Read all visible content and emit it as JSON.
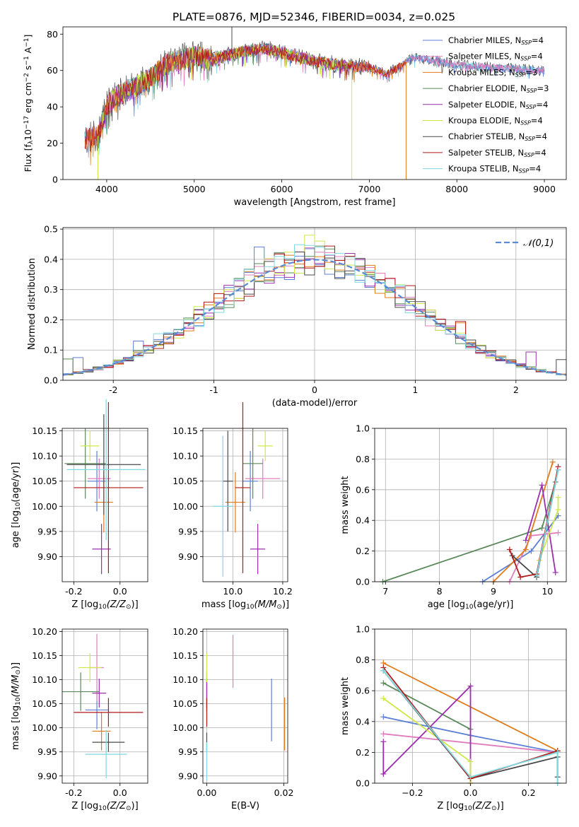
{
  "figure_title": "PLATE=0876, MJD=52346, FIBERID=0034, z=0.025",
  "colors": {
    "Chabrier MILES": "#5b7fd6",
    "Salpeter MILES": "#e07cbf",
    "Kroupa MILES": "#e07b1a",
    "Chabrier ELODIE": "#5a8a5a",
    "Salpeter ELODIE": "#9b2fae",
    "Kroupa ELODIE": "#cfe84a",
    "Chabrier STELIB": "#4a4a4a",
    "Salpeter STELIB": "#b21a1a",
    "Kroupa STELIB": "#7fd9e0"
  },
  "chart_data": [
    {
      "id": "spectrum",
      "type": "line",
      "title": "",
      "xlabel": "wavelength [Angstrom, rest frame]",
      "ylabel_parts": [
        "Flux [f",
        "λ",
        "10",
        "−17",
        " erg cm",
        "−2",
        " s",
        "−1",
        " A",
        "−1",
        "]"
      ],
      "xlim": [
        3500,
        9250
      ],
      "ylim": [
        0,
        84
      ],
      "xticks": [
        4000,
        5000,
        6000,
        7000,
        8000,
        9000
      ],
      "yticks": [
        0,
        20,
        40,
        60,
        80
      ],
      "grid": false,
      "legend_placement": "top-right",
      "legend": [
        {
          "model": "Chabrier MILES",
          "n": "4"
        },
        {
          "model": "Salpeter MILES",
          "n": "4"
        },
        {
          "model": "Kroupa MILES",
          "n": "3"
        },
        {
          "model": "Chabrier ELODIE",
          "n": "3"
        },
        {
          "model": "Salpeter ELODIE",
          "n": "4"
        },
        {
          "model": "Kroupa ELODIE",
          "n": "4"
        },
        {
          "model": "Chabrier STELIB",
          "n": "4"
        },
        {
          "model": "Salpeter STELIB",
          "n": "4"
        },
        {
          "model": "Kroupa STELIB",
          "n": "4"
        }
      ],
      "legend_sub": "SSP",
      "legend_eq": "N",
      "continuum": {
        "x": [
          3750,
          3900,
          4000,
          4100,
          4300,
          4500,
          4700,
          5000,
          5200,
          5500,
          5800,
          6000,
          6300,
          6500,
          6800,
          7000,
          7200,
          7500,
          7800,
          8000,
          8300,
          8600,
          9000
        ],
        "y": [
          22,
          24,
          40,
          46,
          50,
          56,
          64,
          68,
          66,
          70,
          72,
          70,
          66,
          64,
          62,
          62,
          58,
          67,
          65,
          63,
          62,
          61,
          60
        ]
      },
      "spikes": [
        {
          "x": 3900,
          "y": 0,
          "series": "Kroupa ELODIE"
        },
        {
          "x": 6800,
          "y": 0,
          "series": "Kroupa ELODIE"
        },
        {
          "x": 7420,
          "y": 0,
          "series": "Kroupa MILES"
        },
        {
          "x": 5430,
          "y": 84,
          "series": "Chabrier STELIB"
        }
      ]
    },
    {
      "id": "residual_histogram",
      "type": "bar",
      "xlabel": "(data-model)/error",
      "ylabel": "Normed distribution",
      "xlim": [
        -2.5,
        2.5
      ],
      "ylim": [
        0,
        0.505
      ],
      "xticks": [
        -2,
        -1,
        0,
        1,
        2
      ],
      "yticks": [
        0.0,
        0.1,
        0.2,
        0.3,
        0.4,
        0.5
      ],
      "grid": true,
      "bin_width": 0.1,
      "legend_label": "𝒩(0,1)",
      "legend_placement": "top-right",
      "gaussian": {
        "mean": 0,
        "sigma": 1
      }
    },
    {
      "id": "age_vs_Z",
      "type": "scatter",
      "xlabel_parts": [
        "Z [log",
        "10",
        "(Z/Z",
        "⊙",
        ")]"
      ],
      "ylabel_parts": [
        "age  [log",
        "10",
        "(age/yr)]"
      ],
      "xlim": [
        -0.25,
        0.12
      ],
      "ylim": [
        9.85,
        10.155
      ],
      "xticks": [
        -0.2,
        0.0
      ],
      "yticks": [
        9.9,
        9.95,
        10.0,
        10.05,
        10.1,
        10.15
      ],
      "grid": true,
      "points": [
        {
          "series": "Chabrier MILES",
          "x": -0.1,
          "y": 10.05,
          "xerr": 0.04,
          "yerr": 0.06
        },
        {
          "series": "Salpeter MILES",
          "x": -0.09,
          "y": 10.055,
          "xerr": 0.05,
          "yerr": 0.04
        },
        {
          "series": "Kroupa MILES",
          "x": -0.07,
          "y": 10.008,
          "xerr": 0.04,
          "yerr": 0.06
        },
        {
          "series": "Chabrier ELODIE",
          "x": -0.15,
          "y": 10.085,
          "xerr": 0.09,
          "yerr": 0.07
        },
        {
          "series": "Salpeter ELODIE",
          "x": -0.08,
          "y": 9.915,
          "xerr": 0.04,
          "yerr": 0.05
        },
        {
          "series": "Kroupa ELODIE",
          "x": -0.13,
          "y": 10.12,
          "xerr": 0.04,
          "yerr": 0.03
        },
        {
          "series": "Chabrier STELIB",
          "x": -0.07,
          "y": 10.083,
          "xerr": 0.16,
          "yerr": 0.1
        },
        {
          "series": "Salpeter STELIB",
          "x": -0.05,
          "y": 10.037,
          "xerr": 0.15,
          "yerr": 0.17
        },
        {
          "series": "Kroupa STELIB",
          "x": -0.06,
          "y": 10.073,
          "xerr": 0.17,
          "yerr": 0.14
        }
      ]
    },
    {
      "id": "age_vs_mass",
      "type": "scatter",
      "xlabel_parts": [
        "mass [log",
        "10",
        "(M/M",
        "⊙",
        ")]"
      ],
      "xlim": [
        9.88,
        10.22
      ],
      "ylim": [
        9.85,
        10.155
      ],
      "xticks": [
        10.0,
        10.2
      ],
      "yticks": [
        9.9,
        9.95,
        10.0,
        10.05,
        10.1,
        10.15
      ],
      "grid": true,
      "points": [
        {
          "series": "Chabrier MILES",
          "x": 10.07,
          "y": 10.05,
          "xerr": 0.03,
          "yerr": 0.06
        },
        {
          "series": "Salpeter MILES",
          "x": 10.12,
          "y": 10.055,
          "xerr": 0.07,
          "yerr": 0.04
        },
        {
          "series": "Kroupa MILES",
          "x": 10.01,
          "y": 10.008,
          "xerr": 0.04,
          "yerr": 0.06
        },
        {
          "series": "Chabrier ELODIE",
          "x": 10.08,
          "y": 10.085,
          "xerr": 0.04,
          "yerr": 0.07
        },
        {
          "series": "Salpeter ELODIE",
          "x": 10.1,
          "y": 9.915,
          "xerr": 0.03,
          "yerr": 0.05
        },
        {
          "series": "Kroupa ELODIE",
          "x": 10.13,
          "y": 10.12,
          "xerr": 0.03,
          "yerr": 0.03
        },
        {
          "series": "Chabrier STELIB",
          "x": 9.98,
          "y": 10.05,
          "xerr": 0.02,
          "yerr": 0.1
        },
        {
          "series": "Salpeter STELIB",
          "x": 10.04,
          "y": 10.037,
          "xerr": 0.03,
          "yerr": 0.17
        },
        {
          "series": "Kroupa STELIB",
          "x": 9.96,
          "y": 10.0,
          "xerr": 0.04,
          "yerr": 0.14
        }
      ]
    },
    {
      "id": "weight_vs_age",
      "type": "line",
      "xlabel_parts": [
        "age  [log",
        "10",
        "(age/yr)]"
      ],
      "ylabel": "mass weight",
      "xlim": [
        6.8,
        10.35
      ],
      "ylim": [
        0,
        1.0
      ],
      "xticks": [
        7,
        8,
        9,
        10
      ],
      "yticks": [
        0.0,
        0.2,
        0.4,
        0.6,
        0.8,
        1.0
      ],
      "grid": true,
      "series": [
        {
          "name": "Chabrier MILES",
          "x": [
            8.8,
            9.7,
            10.2
          ],
          "y": [
            0.0,
            0.2,
            0.43
          ]
        },
        {
          "name": "Salpeter MILES",
          "x": [
            9.3,
            9.7,
            10.2
          ],
          "y": [
            0.0,
            0.3,
            0.32
          ]
        },
        {
          "name": "Kroupa MILES",
          "x": [
            9.0,
            9.6,
            10.1
          ],
          "y": [
            0.0,
            0.21,
            0.78
          ]
        },
        {
          "name": "Chabrier ELODIE",
          "x": [
            6.95,
            9.9,
            10.15
          ],
          "y": [
            0.0,
            0.35,
            0.65
          ]
        },
        {
          "name": "Salpeter ELODIE",
          "x": [
            9.6,
            9.9,
            10.15
          ],
          "y": [
            0.27,
            0.63,
            0.06
          ]
        },
        {
          "name": "Kroupa ELODIE",
          "x": [
            9.85,
            10.2,
            10.2
          ],
          "y": [
            0.14,
            0.47,
            0.55
          ]
        },
        {
          "name": "Chabrier STELIB",
          "x": [
            9.35,
            9.8,
            10.2
          ],
          "y": [
            0.17,
            0.03,
            0.73
          ]
        },
        {
          "name": "Salpeter STELIB",
          "x": [
            9.3,
            9.5,
            9.8,
            10.2
          ],
          "y": [
            0.21,
            0.03,
            0.05,
            0.75
          ]
        },
        {
          "name": "Kroupa STELIB",
          "x": [
            9.8,
            10.2
          ],
          "y": [
            0.04,
            0.73
          ]
        }
      ]
    },
    {
      "id": "mass_vs_Z",
      "type": "scatter",
      "xlabel_parts": [
        "Z [log",
        "10",
        "(Z/Z",
        "⊙",
        ")]"
      ],
      "ylabel_parts": [
        "mass [log",
        "10",
        "(M/M",
        "⊙",
        ")]"
      ],
      "xlim": [
        -0.25,
        0.12
      ],
      "ylim": [
        9.885,
        10.205
      ],
      "xticks": [
        -0.2,
        0.0
      ],
      "yticks": [
        9.9,
        9.95,
        10.0,
        10.05,
        10.1,
        10.15,
        10.2
      ],
      "grid": true,
      "points": [
        {
          "series": "Chabrier MILES",
          "x": -0.1,
          "y": 10.037,
          "xerr": 0.05,
          "yerr": 0.04
        },
        {
          "series": "Salpeter MILES",
          "x": -0.1,
          "y": 10.125,
          "xerr": 0.03,
          "yerr": 0.07
        },
        {
          "series": "Kroupa MILES",
          "x": -0.08,
          "y": 9.993,
          "xerr": 0.04,
          "yerr": 0.04
        },
        {
          "series": "Chabrier ELODIE",
          "x": -0.17,
          "y": 10.075,
          "xerr": 0.08,
          "yerr": 0.04
        },
        {
          "series": "Salpeter ELODIE",
          "x": -0.09,
          "y": 10.072,
          "xerr": 0.03,
          "yerr": 0.03
        },
        {
          "series": "Kroupa ELODIE",
          "x": -0.13,
          "y": 10.125,
          "xerr": 0.05,
          "yerr": 0.03
        },
        {
          "series": "Chabrier STELIB",
          "x": -0.05,
          "y": 9.97,
          "xerr": 0.07,
          "yerr": 0.02
        },
        {
          "series": "Salpeter STELIB",
          "x": -0.05,
          "y": 10.032,
          "xerr": 0.15,
          "yerr": 0.03
        },
        {
          "series": "Kroupa STELIB",
          "x": -0.06,
          "y": 9.945,
          "xerr": 0.09,
          "yerr": 0.05
        }
      ]
    },
    {
      "id": "mass_vs_ebv",
      "type": "scatter",
      "xlabel": "E(B-V)",
      "xlim": [
        -0.001,
        0.021
      ],
      "ylim": [
        9.885,
        10.205
      ],
      "xticks": [
        0.0,
        0.02
      ],
      "yticks": [
        9.9,
        9.95,
        10.0,
        10.05,
        10.1,
        10.15,
        10.2
      ],
      "grid": true,
      "points": [
        {
          "series": "Chabrier MILES",
          "x": 0.0168,
          "y": 10.037,
          "yerr": 0.065
        },
        {
          "series": "Salpeter MILES",
          "x": 0.0068,
          "y": 10.138,
          "yerr": 0.055
        },
        {
          "series": "Kroupa MILES",
          "x": 0.0202,
          "y": 10.008,
          "yerr": 0.055
        },
        {
          "series": "Chabrier ELODIE",
          "x": 0.0,
          "y": 10.075,
          "yerr": 0.04
        },
        {
          "series": "Salpeter ELODIE",
          "x": 0.0,
          "y": 10.072,
          "yerr": 0.03
        },
        {
          "series": "Kroupa ELODIE",
          "x": 0.0,
          "y": 10.125,
          "yerr": 0.03
        },
        {
          "series": "Chabrier STELIB",
          "x": 0.0,
          "y": 9.97,
          "yerr": 0.02
        },
        {
          "series": "Salpeter STELIB",
          "x": 0.0,
          "y": 10.032,
          "yerr": 0.03
        },
        {
          "series": "Kroupa STELIB",
          "x": 0.0,
          "y": 9.93,
          "yerr": 0.04
        }
      ]
    },
    {
      "id": "weight_vs_Z",
      "type": "line",
      "xlabel_parts": [
        "Z [log",
        "10",
        "(Z/Z",
        "⊙",
        ")]"
      ],
      "ylabel": "mass weight",
      "xlim": [
        -0.33,
        0.33
      ],
      "ylim": [
        0,
        1.0
      ],
      "xticks": [
        -0.2,
        0.0,
        0.2
      ],
      "yticks": [
        0.0,
        0.2,
        0.4,
        0.6,
        0.8,
        1.0
      ],
      "grid": true,
      "series": [
        {
          "name": "Chabrier MILES",
          "x": [
            -0.3,
            0.0,
            0.3
          ],
          "y": [
            0.43,
            0.31,
            0.2
          ]
        },
        {
          "name": "Salpeter MILES",
          "x": [
            -0.3,
            0.0,
            0.3
          ],
          "y": [
            0.32,
            0.26,
            0.2
          ]
        },
        {
          "name": "Kroupa MILES",
          "x": [
            -0.3,
            0.3,
            0.3
          ],
          "y": [
            0.78,
            0.21,
            0.0
          ]
        },
        {
          "name": "Chabrier ELODIE",
          "x": [
            -0.3,
            0.0
          ],
          "y": [
            0.65,
            0.35
          ]
        },
        {
          "name": "Salpeter ELODIE",
          "x": [
            -0.3,
            -0.3,
            0.0,
            0.0
          ],
          "y": [
            0.27,
            0.06,
            0.63,
            0.0
          ]
        },
        {
          "name": "Kroupa ELODIE",
          "x": [
            -0.3,
            0.0,
            0.0
          ],
          "y": [
            0.55,
            0.14,
            0.0
          ]
        },
        {
          "name": "Chabrier STELIB",
          "x": [
            -0.3,
            0.0,
            0.3,
            0.3
          ],
          "y": [
            0.73,
            0.03,
            0.17,
            0.04
          ]
        },
        {
          "name": "Salpeter STELIB",
          "x": [
            -0.3,
            0.0,
            0.3
          ],
          "y": [
            0.75,
            0.03,
            0.21
          ]
        },
        {
          "name": "Kroupa STELIB",
          "x": [
            -0.3,
            0.0,
            0.3,
            0.3
          ],
          "y": [
            0.73,
            0.04,
            0.2,
            0.0
          ]
        }
      ]
    }
  ]
}
